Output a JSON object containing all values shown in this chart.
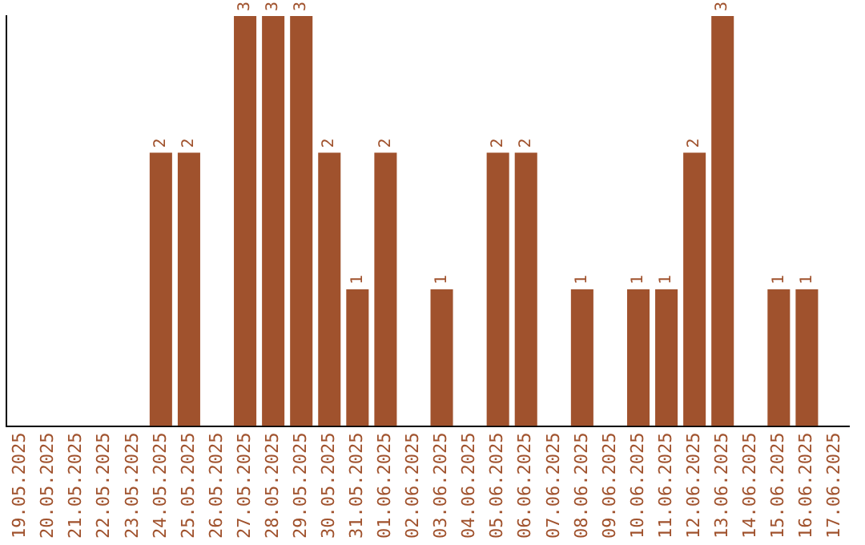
{
  "chart_data": {
    "type": "bar",
    "categories": [
      "19.05.2025",
      "20.05.2025",
      "21.05.2025",
      "22.05.2025",
      "23.05.2025",
      "24.05.2025",
      "25.05.2025",
      "26.05.2025",
      "27.05.2025",
      "28.05.2025",
      "29.05.2025",
      "30.05.2025",
      "31.05.2025",
      "01.06.2025",
      "02.06.2025",
      "03.06.2025",
      "04.06.2025",
      "05.06.2025",
      "06.06.2025",
      "07.06.2025",
      "08.06.2025",
      "09.06.2025",
      "10.06.2025",
      "11.06.2025",
      "12.06.2025",
      "13.06.2025",
      "14.06.2025",
      "15.06.2025",
      "16.06.2025",
      "17.06.2025"
    ],
    "values": [
      0,
      0,
      0,
      0,
      0,
      2,
      2,
      0,
      3,
      3,
      3,
      2,
      1,
      2,
      0,
      1,
      0,
      2,
      2,
      0,
      1,
      0,
      1,
      1,
      2,
      3,
      0,
      1,
      1,
      0
    ],
    "value_labels": [
      null,
      null,
      null,
      null,
      null,
      "2",
      "2",
      null,
      "3",
      "3",
      "3",
      "2",
      "1",
      "2",
      null,
      "1",
      null,
      "2",
      "2",
      null,
      "1",
      null,
      "1",
      "1",
      "2",
      "3",
      null,
      "1",
      "1",
      null
    ],
    "color": "#a0522d",
    "grid": false,
    "legend": false,
    "tick_labels": "x"
  }
}
